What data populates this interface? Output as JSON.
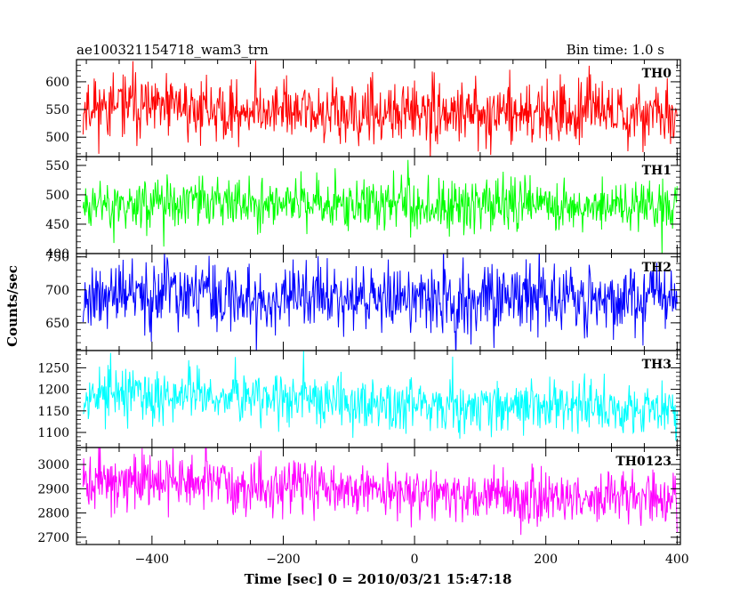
{
  "header": {
    "title": "ae100321154718_wam3_trn",
    "bin_time": "Bin time: 1.0 s"
  },
  "axes": {
    "ylabel": "Counts/sec",
    "xlabel": "Time [sec] 0 = 2010/03/21 15:47:18"
  },
  "chart_data": {
    "type": "line",
    "xlim": [
      -515,
      405
    ],
    "x_ticks": [
      -400,
      -200,
      0,
      200,
      400
    ],
    "x_tick_labels": [
      "−400",
      "−200",
      "0",
      "200",
      "400"
    ],
    "bin_time_s": 1.0,
    "t_start": -505,
    "t_end": 400,
    "panels": [
      {
        "name": "TH0",
        "color": "#ff0000",
        "ylim": [
          465,
          640
        ],
        "yticks": [
          500,
          550,
          600
        ],
        "mean": [
          [
            -505,
            555
          ],
          [
            -300,
            552
          ],
          [
            -100,
            540
          ],
          [
            100,
            545
          ],
          [
            400,
            542
          ]
        ],
        "amplitude": 28,
        "seed": 11
      },
      {
        "name": "TH1",
        "color": "#00ff00",
        "ylim": [
          400,
          565
        ],
        "yticks": [
          400,
          450,
          500,
          550
        ],
        "mean": [
          [
            -505,
            488
          ],
          [
            -200,
            485
          ],
          [
            100,
            484
          ],
          [
            400,
            482
          ]
        ],
        "amplitude": 22,
        "seed": 23
      },
      {
        "name": "TH2",
        "color": "#0000ff",
        "ylim": [
          608,
          755
        ],
        "yticks": [
          650,
          700,
          750
        ],
        "mean": [
          [
            -505,
            692
          ],
          [
            -200,
            690
          ],
          [
            100,
            688
          ],
          [
            400,
            686
          ]
        ],
        "amplitude": 26,
        "seed": 37
      },
      {
        "name": "TH3",
        "color": "#00ffff",
        "ylim": [
          1065,
          1290
        ],
        "yticks": [
          1100,
          1150,
          1200,
          1250
        ],
        "mean": [
          [
            -505,
            1190
          ],
          [
            -300,
            1185
          ],
          [
            -100,
            1172
          ],
          [
            100,
            1165
          ],
          [
            400,
            1160
          ]
        ],
        "amplitude": 30,
        "seed": 53
      },
      {
        "name": "TH0123",
        "color": "#ff00ff",
        "ylim": [
          2670,
          3070
        ],
        "yticks": [
          2700,
          2800,
          2900,
          3000
        ],
        "mean": [
          [
            -505,
            2935
          ],
          [
            -300,
            2920
          ],
          [
            -100,
            2895
          ],
          [
            100,
            2875
          ],
          [
            400,
            2860
          ]
        ],
        "amplitude": 55,
        "seed": 71
      }
    ]
  }
}
